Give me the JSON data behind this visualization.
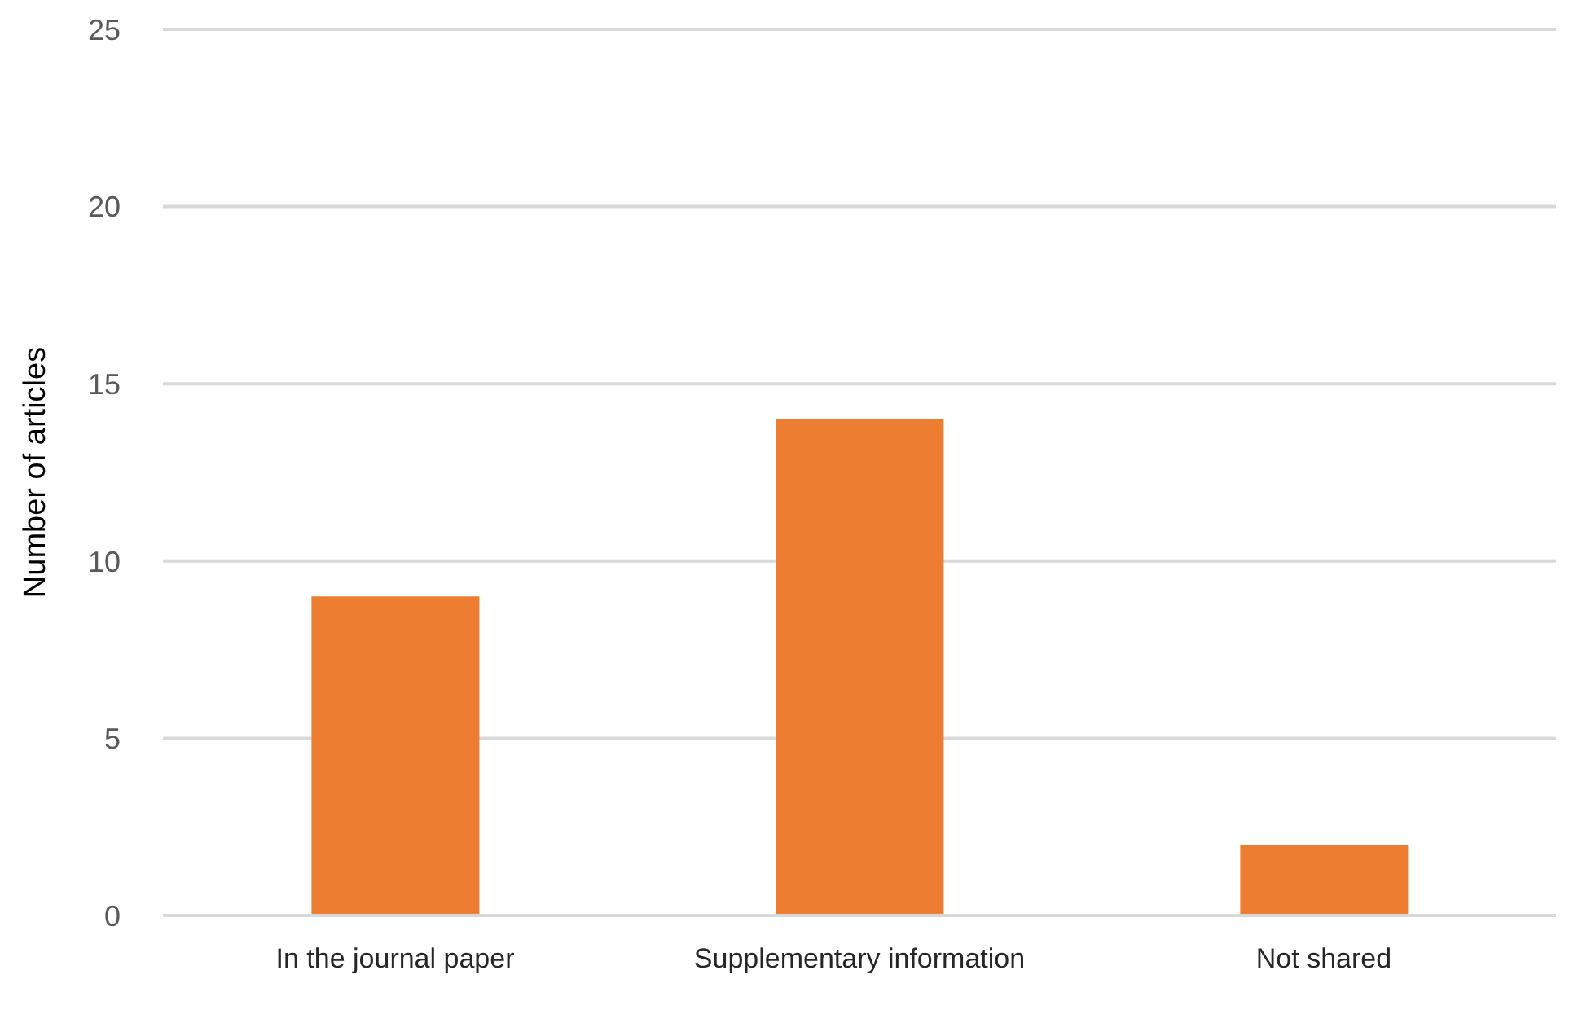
{
  "chart_data": {
    "type": "bar",
    "ylabel": "Number of articles",
    "categories": [
      "In the journal paper",
      "Supplementary information",
      "Not shared"
    ],
    "values": [
      9,
      14,
      2
    ],
    "color": "#ed7d31",
    "ylim": [
      0,
      25
    ],
    "yticks": [
      0,
      5,
      10,
      15,
      20,
      25
    ],
    "grid": "y"
  }
}
